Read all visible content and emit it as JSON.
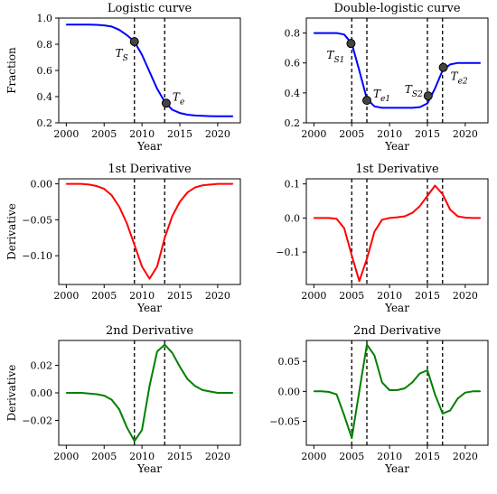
{
  "chart_data": [
    {
      "id": "logistic",
      "type": "line",
      "title": "Logistic curve",
      "xlabel": "Year",
      "ylabel": "Fraction",
      "xlim": [
        1999,
        2023
      ],
      "ylim": [
        0.2,
        1.0
      ],
      "xticks": [
        2000,
        2005,
        2010,
        2015,
        2020
      ],
      "yticks": [
        0.2,
        0.4,
        0.6,
        0.8,
        1.0
      ],
      "ytick_labels": [
        "0.2",
        "0.4",
        "0.6",
        "0.8",
        "1.0"
      ],
      "grid": false,
      "color": "#0000ff",
      "x": [
        2000,
        2001,
        2002,
        2003,
        2004,
        2005,
        2006,
        2007,
        2008,
        2009,
        2010,
        2011,
        2012,
        2013,
        2014,
        2015,
        2016,
        2017,
        2018,
        2019,
        2020,
        2021,
        2022
      ],
      "y": [
        0.95,
        0.95,
        0.95,
        0.95,
        0.948,
        0.944,
        0.935,
        0.91,
        0.87,
        0.82,
        0.72,
        0.59,
        0.46,
        0.36,
        0.3,
        0.275,
        0.262,
        0.256,
        0.253,
        0.251,
        0.25,
        0.25,
        0.25
      ],
      "vlines": [
        2009,
        2013
      ],
      "markers": [
        {
          "x": 2009,
          "y": 0.82,
          "label": "T",
          "sub": "S",
          "label_pos": "below-left"
        },
        {
          "x": 2013.2,
          "y": 0.35,
          "label": "T",
          "sub": "e",
          "label_pos": "above-right"
        }
      ]
    },
    {
      "id": "double_logistic",
      "type": "line",
      "title": "Double-logistic curve",
      "xlabel": "Year",
      "ylabel": "",
      "xlim": [
        1999,
        2023
      ],
      "ylim": [
        0.2,
        0.9
      ],
      "xticks": [
        2000,
        2005,
        2010,
        2015,
        2020
      ],
      "yticks": [
        0.2,
        0.4,
        0.6,
        0.8
      ],
      "ytick_labels": [
        "0.2",
        "0.4",
        "0.6",
        "0.8"
      ],
      "grid": false,
      "color": "#0000ff",
      "x": [
        2000,
        2001,
        2002,
        2003,
        2004,
        2005,
        2006,
        2007,
        2008,
        2009,
        2010,
        2011,
        2012,
        2013,
        2014,
        2015,
        2016,
        2017,
        2018,
        2019,
        2020,
        2021,
        2022
      ],
      "y": [
        0.8,
        0.8,
        0.8,
        0.8,
        0.79,
        0.73,
        0.55,
        0.36,
        0.31,
        0.3,
        0.3,
        0.3,
        0.3,
        0.3,
        0.305,
        0.33,
        0.43,
        0.55,
        0.59,
        0.6,
        0.6,
        0.6,
        0.6
      ],
      "vlines": [
        2005,
        2007,
        2015,
        2017
      ],
      "markers": [
        {
          "x": 2004.9,
          "y": 0.73,
          "label": "T",
          "sub": "S1",
          "label_pos": "below-left"
        },
        {
          "x": 2007,
          "y": 0.35,
          "label": "T",
          "sub": "e1",
          "label_pos": "above-right"
        },
        {
          "x": 2015.1,
          "y": 0.38,
          "label": "T",
          "sub": "S2",
          "label_pos": "above-left"
        },
        {
          "x": 2017.1,
          "y": 0.57,
          "label": "T",
          "sub": "e2",
          "label_pos": "below-right"
        }
      ]
    },
    {
      "id": "logistic_d1",
      "type": "line",
      "title": "1st Derivative",
      "xlabel": "Year",
      "ylabel": "Derivative",
      "xlim": [
        1999,
        2023
      ],
      "ylim": [
        -0.14,
        0.007
      ],
      "xticks": [
        2000,
        2005,
        2010,
        2015,
        2020
      ],
      "yticks": [
        -0.1,
        -0.05,
        0.0
      ],
      "ytick_labels": [
        "−0.10",
        "−0.05",
        "0.00"
      ],
      "grid": false,
      "color": "#ff0000",
      "x": [
        2000,
        2001,
        2002,
        2003,
        2004,
        2005,
        2006,
        2007,
        2008,
        2009,
        2010,
        2011,
        2012,
        2013,
        2014,
        2015,
        2016,
        2017,
        2018,
        2019,
        2020,
        2021,
        2022
      ],
      "y": [
        0,
        0,
        0,
        -0.001,
        -0.003,
        -0.007,
        -0.016,
        -0.032,
        -0.055,
        -0.085,
        -0.115,
        -0.132,
        -0.115,
        -0.075,
        -0.045,
        -0.025,
        -0.012,
        -0.005,
        -0.002,
        -0.001,
        0,
        0,
        0
      ],
      "vlines": [
        2009,
        2013
      ],
      "markers": []
    },
    {
      "id": "double_logistic_d1",
      "type": "line",
      "title": "1st Derivative",
      "xlabel": "Year",
      "ylabel": "",
      "xlim": [
        1999,
        2023
      ],
      "ylim": [
        -0.195,
        0.115
      ],
      "xticks": [
        2000,
        2005,
        2010,
        2015,
        2020
      ],
      "yticks": [
        -0.1,
        0.0,
        0.1
      ],
      "ytick_labels": [
        "−0.1",
        "0.0",
        "0.1"
      ],
      "grid": false,
      "color": "#ff0000",
      "x": [
        2000,
        2001,
        2002,
        2003,
        2004,
        2005,
        2006,
        2007,
        2008,
        2009,
        2010,
        2011,
        2012,
        2013,
        2014,
        2015,
        2016,
        2017,
        2018,
        2019,
        2020,
        2021,
        2022
      ],
      "y": [
        0,
        0,
        0,
        -0.002,
        -0.03,
        -0.11,
        -0.185,
        -0.12,
        -0.04,
        -0.005,
        0,
        0.002,
        0.005,
        0.015,
        0.035,
        0.065,
        0.095,
        0.07,
        0.025,
        0.005,
        0.001,
        0,
        0
      ],
      "vlines": [
        2005,
        2007,
        2015,
        2017
      ],
      "markers": []
    },
    {
      "id": "logistic_d2",
      "type": "line",
      "title": "2nd Derivative",
      "xlabel": "Year",
      "ylabel": "Derivative",
      "xlim": [
        1999,
        2023
      ],
      "ylim": [
        -0.038,
        0.038
      ],
      "xticks": [
        2000,
        2005,
        2010,
        2015,
        2020
      ],
      "yticks": [
        -0.02,
        0.0,
        0.02
      ],
      "ytick_labels": [
        "−0.02",
        "0.00",
        "0.02"
      ],
      "grid": false,
      "color": "#008000",
      "x": [
        2000,
        2001,
        2002,
        2003,
        2004,
        2005,
        2006,
        2007,
        2008,
        2009,
        2010,
        2011,
        2012,
        2013,
        2014,
        2015,
        2016,
        2017,
        2018,
        2019,
        2020,
        2021,
        2022
      ],
      "y": [
        0,
        0,
        0,
        -0.0005,
        -0.001,
        -0.002,
        -0.005,
        -0.012,
        -0.025,
        -0.035,
        -0.027,
        0.005,
        0.03,
        0.035,
        0.029,
        0.019,
        0.01,
        0.005,
        0.002,
        0.001,
        0,
        0,
        0
      ],
      "vlines": [
        2009,
        2013
      ],
      "markers": []
    },
    {
      "id": "double_logistic_d2",
      "type": "line",
      "title": "2nd Derivative",
      "xlabel": "Year",
      "ylabel": "",
      "xlim": [
        1999,
        2023
      ],
      "ylim": [
        -0.09,
        0.085
      ],
      "xticks": [
        2000,
        2005,
        2010,
        2015,
        2020
      ],
      "yticks": [
        -0.05,
        0.0,
        0.05
      ],
      "ytick_labels": [
        "−0.05",
        "0.00",
        "0.05"
      ],
      "grid": false,
      "color": "#008000",
      "x": [
        2000,
        2001,
        2002,
        2003,
        2004,
        2005,
        2006,
        2007,
        2008,
        2009,
        2010,
        2011,
        2012,
        2013,
        2014,
        2015,
        2016,
        2017,
        2018,
        2019,
        2020,
        2021,
        2022
      ],
      "y": [
        0,
        0,
        -0.001,
        -0.005,
        -0.04,
        -0.078,
        0.0,
        0.078,
        0.06,
        0.015,
        0.002,
        0.002,
        0.005,
        0.015,
        0.03,
        0.035,
        -0.005,
        -0.037,
        -0.032,
        -0.012,
        -0.002,
        0,
        0
      ],
      "vlines": [
        2005,
        2007,
        2015,
        2017
      ],
      "markers": []
    }
  ]
}
